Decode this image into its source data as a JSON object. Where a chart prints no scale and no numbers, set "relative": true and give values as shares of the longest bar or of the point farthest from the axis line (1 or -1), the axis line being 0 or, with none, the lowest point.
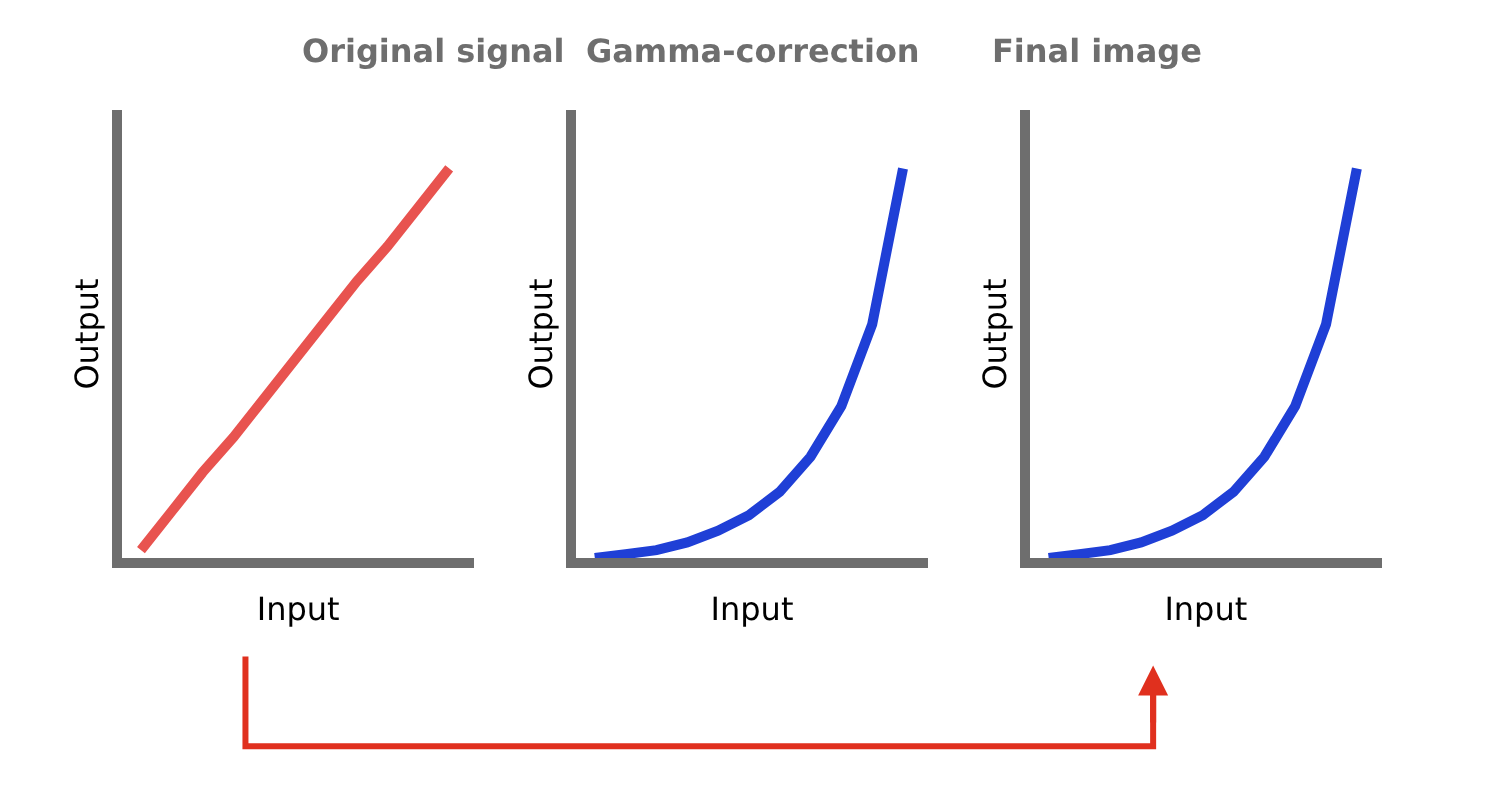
{
  "chart_data": [
    {
      "type": "line",
      "title": "Original signal",
      "xlabel": "Input",
      "ylabel": "Output",
      "relative": true,
      "categories": [
        null,
        null,
        null,
        null,
        null,
        null,
        null,
        null,
        null,
        null,
        null
      ],
      "series": [
        {
          "color": "#e8534f",
          "values": [
            0.02,
            0.12,
            0.22,
            0.31,
            0.41,
            0.51,
            0.61,
            0.71,
            0.8,
            0.9,
            1.0
          ]
        }
      ]
    },
    {
      "type": "line",
      "title": "Gamma-correction",
      "xlabel": "Input",
      "ylabel": "Output",
      "relative": true,
      "categories": [
        null,
        null,
        null,
        null,
        null,
        null,
        null,
        null,
        null,
        null,
        null
      ],
      "series": [
        {
          "color": "#1f3fd6",
          "values": [
            0.0,
            0.01,
            0.02,
            0.04,
            0.07,
            0.11,
            0.17,
            0.26,
            0.39,
            0.6,
            1.0
          ]
        }
      ]
    },
    {
      "type": "line",
      "title": "Final image",
      "xlabel": "Input",
      "ylabel": "Output",
      "relative": true,
      "categories": [
        null,
        null,
        null,
        null,
        null,
        null,
        null,
        null,
        null,
        null,
        null
      ],
      "series": [
        {
          "color": "#1f3fd6",
          "values": [
            0.0,
            0.01,
            0.02,
            0.04,
            0.07,
            0.11,
            0.17,
            0.26,
            0.39,
            0.6,
            1.0
          ]
        }
      ]
    }
  ]
}
